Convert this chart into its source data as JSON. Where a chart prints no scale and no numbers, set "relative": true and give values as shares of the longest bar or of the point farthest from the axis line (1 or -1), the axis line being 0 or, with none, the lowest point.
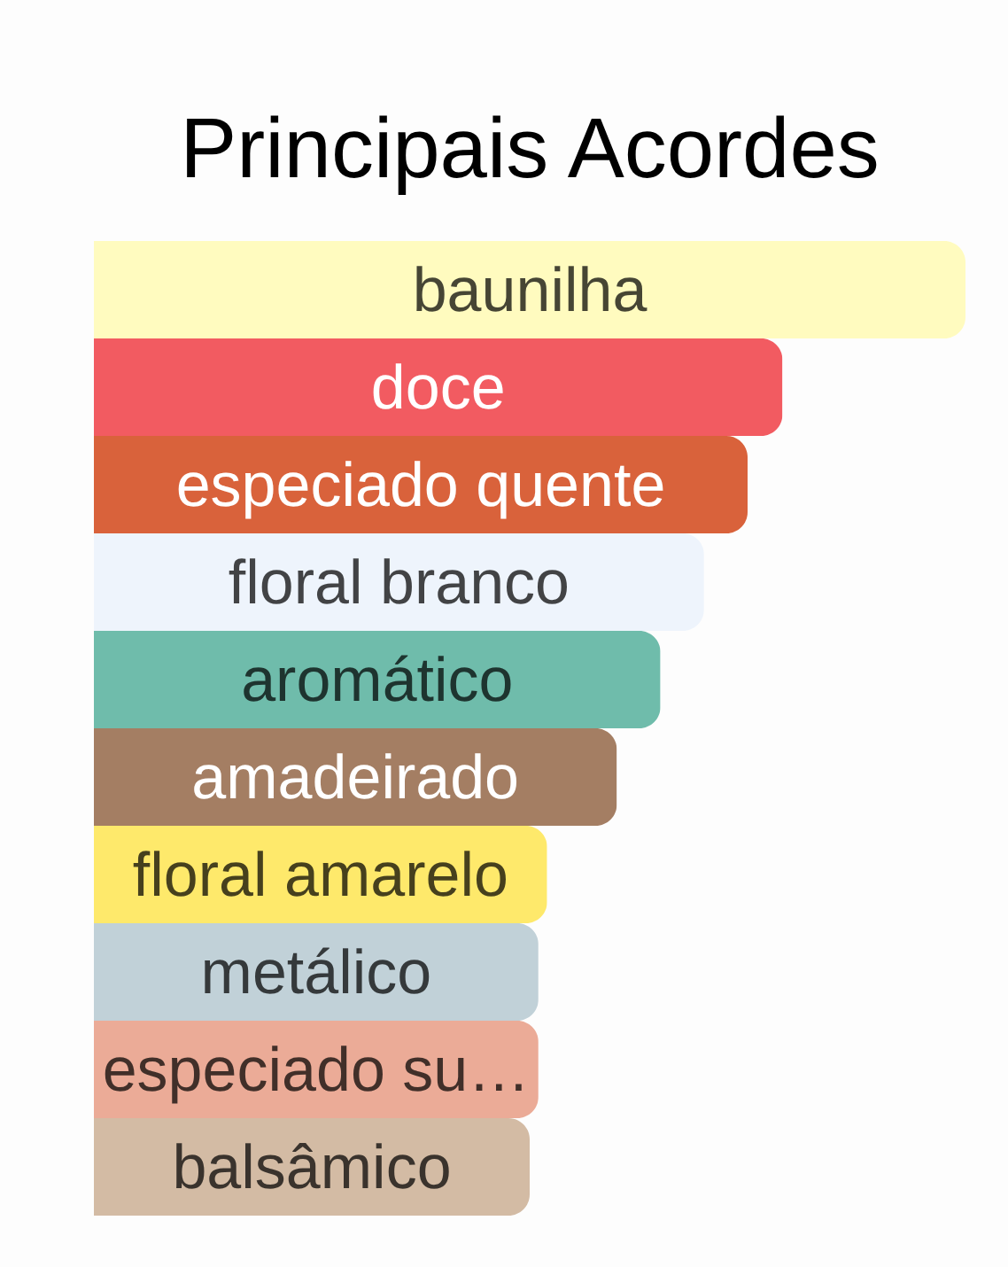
{
  "chart_data": {
    "type": "bar",
    "title": "Principais Acordes",
    "orientation": "horizontal",
    "relative": true,
    "categories": [
      "baunilha",
      "doce",
      "especiado quente",
      "floral branco",
      "aromático",
      "amadeirado",
      "floral amarelo",
      "metálico",
      "especiado su…",
      "balsâmico"
    ],
    "values": [
      1,
      0.79,
      0.75,
      0.7,
      0.65,
      0.6,
      0.52,
      0.51,
      0.51,
      0.5
    ],
    "colors": [
      "#fffbbf",
      "#f25b61",
      "#d9623b",
      "#eef4fc",
      "#6fbcab",
      "#a47e63",
      "#fee96b",
      "#c1d1d8",
      "#ebab97",
      "#d3bba4"
    ]
  }
}
